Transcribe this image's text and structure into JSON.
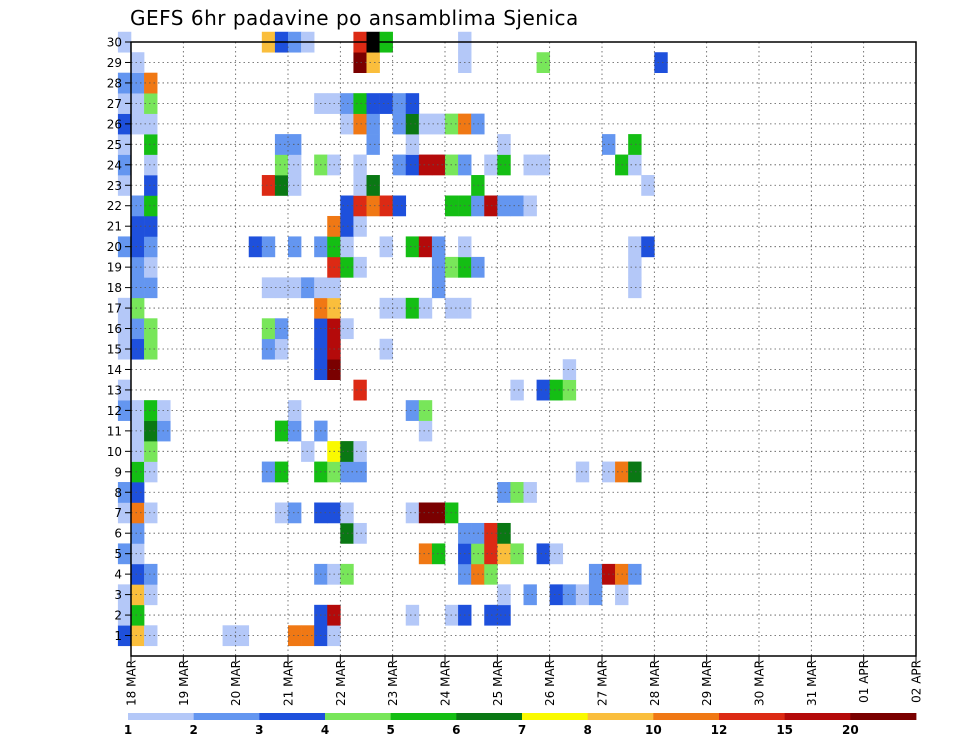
{
  "chart_data": {
    "type": "heatmap",
    "title": "GEFS 6hr padavine po ansamblima Sjenica",
    "xlabel": "",
    "ylabel": "",
    "x_labels": [
      "18 MAR",
      "19 MAR",
      "20 MAR",
      "21 MAR",
      "22 MAR",
      "23 MAR",
      "24 MAR",
      "25 MAR",
      "26 MAR",
      "27 MAR",
      "28 MAR",
      "29 MAR",
      "30 MAR",
      "31 MAR",
      "01 APR",
      "02 APR"
    ],
    "y_labels": [
      "1",
      "2",
      "3",
      "4",
      "5",
      "6",
      "7",
      "8",
      "9",
      "10",
      "11",
      "12",
      "13",
      "14",
      "15",
      "16",
      "17",
      "18",
      "19",
      "20",
      "21",
      "22",
      "23",
      "24",
      "25",
      "26",
      "27",
      "28",
      "29",
      "30"
    ],
    "ylim": [
      0,
      30
    ],
    "grid": true,
    "legend": {
      "position": "bottom",
      "thresholds": [
        "1",
        "2",
        "3",
        "4",
        "5",
        "6",
        "7",
        "8",
        "10",
        "12",
        "15",
        "20"
      ],
      "colors": [
        "#b4c8f8",
        "#6496f0",
        "#1e50dc",
        "#78e65a",
        "#14be14",
        "#0a7814",
        "#fafa00",
        "#fabe3c",
        "#f07814",
        "#dc2a14",
        "#b40a0a",
        "#7a0000"
      ]
    },
    "cells": [
      [
        1,
        1,
        3
      ],
      [
        1,
        2,
        8
      ],
      [
        1,
        3,
        1
      ],
      [
        1,
        9,
        1
      ],
      [
        1,
        10,
        1
      ],
      [
        1,
        14,
        9
      ],
      [
        1,
        15,
        9
      ],
      [
        1,
        16,
        3
      ],
      [
        1,
        17,
        1
      ],
      [
        2,
        1,
        1
      ],
      [
        2,
        2,
        5
      ],
      [
        2,
        16,
        3
      ],
      [
        2,
        17,
        11
      ],
      [
        2,
        23,
        1
      ],
      [
        2,
        26,
        1
      ],
      [
        2,
        27,
        3
      ],
      [
        2,
        29,
        3
      ],
      [
        2,
        30,
        3
      ],
      [
        3,
        1,
        1
      ],
      [
        3,
        2,
        8
      ],
      [
        3,
        3,
        1
      ],
      [
        3,
        30,
        1
      ],
      [
        3,
        32,
        2
      ],
      [
        3,
        34,
        3
      ],
      [
        3,
        35,
        2
      ],
      [
        3,
        36,
        1
      ],
      [
        3,
        37,
        2
      ],
      [
        3,
        39,
        1
      ],
      [
        4,
        2,
        3
      ],
      [
        4,
        3,
        2
      ],
      [
        4,
        16,
        2
      ],
      [
        4,
        17,
        1
      ],
      [
        4,
        18,
        4
      ],
      [
        4,
        27,
        2
      ],
      [
        4,
        28,
        9
      ],
      [
        4,
        29,
        4
      ],
      [
        4,
        37,
        2
      ],
      [
        4,
        38,
        11
      ],
      [
        4,
        39,
        9
      ],
      [
        4,
        40,
        2
      ],
      [
        5,
        1,
        2
      ],
      [
        5,
        2,
        1
      ],
      [
        5,
        24,
        9
      ],
      [
        5,
        25,
        5
      ],
      [
        5,
        27,
        3
      ],
      [
        5,
        28,
        4
      ],
      [
        5,
        29,
        10
      ],
      [
        5,
        30,
        8
      ],
      [
        5,
        31,
        4
      ],
      [
        5,
        33,
        3
      ],
      [
        5,
        34,
        1
      ],
      [
        6,
        2,
        2
      ],
      [
        6,
        18,
        6
      ],
      [
        6,
        19,
        1
      ],
      [
        6,
        27,
        2
      ],
      [
        6,
        28,
        2
      ],
      [
        6,
        29,
        10
      ],
      [
        6,
        30,
        6
      ],
      [
        7,
        1,
        1
      ],
      [
        7,
        2,
        9
      ],
      [
        7,
        3,
        1
      ],
      [
        7,
        13,
        1
      ],
      [
        7,
        14,
        2
      ],
      [
        7,
        16,
        3
      ],
      [
        7,
        17,
        3
      ],
      [
        7,
        18,
        1
      ],
      [
        7,
        23,
        1
      ],
      [
        7,
        24,
        12
      ],
      [
        7,
        25,
        12
      ],
      [
        7,
        26,
        5
      ],
      [
        8,
        1,
        2
      ],
      [
        8,
        2,
        3
      ],
      [
        8,
        30,
        2
      ],
      [
        8,
        31,
        4
      ],
      [
        8,
        32,
        1
      ],
      [
        9,
        2,
        5
      ],
      [
        9,
        3,
        1
      ],
      [
        9,
        12,
        2
      ],
      [
        9,
        13,
        5
      ],
      [
        9,
        16,
        5
      ],
      [
        9,
        17,
        4
      ],
      [
        9,
        18,
        2
      ],
      [
        9,
        19,
        2
      ],
      [
        9,
        36,
        1
      ],
      [
        9,
        38,
        1
      ],
      [
        9,
        39,
        9
      ],
      [
        9,
        40,
        6
      ],
      [
        10,
        2,
        1
      ],
      [
        10,
        3,
        4
      ],
      [
        10,
        15,
        1
      ],
      [
        10,
        17,
        7
      ],
      [
        10,
        18,
        6
      ],
      [
        10,
        19,
        1
      ],
      [
        11,
        2,
        1
      ],
      [
        11,
        3,
        6
      ],
      [
        11,
        4,
        2
      ],
      [
        11,
        13,
        5
      ],
      [
        11,
        14,
        2
      ],
      [
        11,
        16,
        2
      ],
      [
        11,
        24,
        1
      ],
      [
        12,
        1,
        2
      ],
      [
        12,
        2,
        1
      ],
      [
        12,
        3,
        5
      ],
      [
        12,
        4,
        1
      ],
      [
        12,
        14,
        1
      ],
      [
        12,
        23,
        2
      ],
      [
        12,
        24,
        4
      ],
      [
        13,
        1,
        1
      ],
      [
        13,
        19,
        10
      ],
      [
        13,
        31,
        1
      ],
      [
        13,
        33,
        3
      ],
      [
        13,
        34,
        5
      ],
      [
        13,
        35,
        4
      ],
      [
        14,
        16,
        3
      ],
      [
        14,
        17,
        12
      ],
      [
        14,
        35,
        1
      ],
      [
        15,
        1,
        1
      ],
      [
        15,
        2,
        3
      ],
      [
        15,
        3,
        4
      ],
      [
        15,
        12,
        2
      ],
      [
        15,
        13,
        1
      ],
      [
        15,
        16,
        3
      ],
      [
        15,
        17,
        11
      ],
      [
        15,
        21,
        1
      ],
      [
        16,
        1,
        1
      ],
      [
        16,
        2,
        2
      ],
      [
        16,
        3,
        4
      ],
      [
        16,
        12,
        4
      ],
      [
        16,
        13,
        2
      ],
      [
        16,
        16,
        3
      ],
      [
        16,
        17,
        11
      ],
      [
        16,
        18,
        1
      ],
      [
        17,
        1,
        1
      ],
      [
        17,
        2,
        4
      ],
      [
        17,
        16,
        9
      ],
      [
        17,
        17,
        8
      ],
      [
        17,
        21,
        1
      ],
      [
        17,
        22,
        1
      ],
      [
        17,
        23,
        5
      ],
      [
        17,
        24,
        1
      ],
      [
        17,
        26,
        1
      ],
      [
        17,
        27,
        1
      ],
      [
        18,
        2,
        2
      ],
      [
        18,
        3,
        2
      ],
      [
        18,
        12,
        1
      ],
      [
        18,
        13,
        1
      ],
      [
        18,
        14,
        1
      ],
      [
        18,
        15,
        2
      ],
      [
        18,
        16,
        1
      ],
      [
        18,
        17,
        1
      ],
      [
        18,
        25,
        2
      ],
      [
        18,
        40,
        1
      ],
      [
        19,
        2,
        2
      ],
      [
        19,
        3,
        1
      ],
      [
        19,
        17,
        10
      ],
      [
        19,
        18,
        5
      ],
      [
        19,
        19,
        1
      ],
      [
        19,
        25,
        2
      ],
      [
        19,
        26,
        4
      ],
      [
        19,
        27,
        5
      ],
      [
        19,
        28,
        2
      ],
      [
        19,
        40,
        1
      ],
      [
        20,
        1,
        2
      ],
      [
        20,
        2,
        3
      ],
      [
        20,
        3,
        2
      ],
      [
        20,
        11,
        3
      ],
      [
        20,
        12,
        2
      ],
      [
        20,
        14,
        2
      ],
      [
        20,
        16,
        2
      ],
      [
        20,
        17,
        5
      ],
      [
        20,
        18,
        1
      ],
      [
        20,
        21,
        1
      ],
      [
        20,
        23,
        5
      ],
      [
        20,
        24,
        11
      ],
      [
        20,
        25,
        2
      ],
      [
        20,
        27,
        1
      ],
      [
        20,
        40,
        1
      ],
      [
        20,
        41,
        3
      ],
      [
        21,
        2,
        3
      ],
      [
        21,
        3,
        3
      ],
      [
        21,
        17,
        9
      ],
      [
        21,
        18,
        3
      ],
      [
        21,
        19,
        1
      ],
      [
        22,
        2,
        2
      ],
      [
        22,
        3,
        5
      ],
      [
        22,
        18,
        3
      ],
      [
        22,
        19,
        10
      ],
      [
        22,
        20,
        9
      ],
      [
        22,
        21,
        10
      ],
      [
        22,
        22,
        3
      ],
      [
        22,
        26,
        5
      ],
      [
        22,
        27,
        5
      ],
      [
        22,
        28,
        2
      ],
      [
        22,
        29,
        11
      ],
      [
        22,
        30,
        2
      ],
      [
        22,
        31,
        2
      ],
      [
        22,
        32,
        1
      ],
      [
        23,
        1,
        1
      ],
      [
        23,
        3,
        3
      ],
      [
        23,
        12,
        10
      ],
      [
        23,
        13,
        6
      ],
      [
        23,
        14,
        1
      ],
      [
        23,
        19,
        1
      ],
      [
        23,
        20,
        6
      ],
      [
        23,
        28,
        5
      ],
      [
        23,
        41,
        1
      ],
      [
        24,
        1,
        2
      ],
      [
        24,
        3,
        1
      ],
      [
        24,
        13,
        4
      ],
      [
        24,
        14,
        1
      ],
      [
        24,
        16,
        4
      ],
      [
        24,
        17,
        1
      ],
      [
        24,
        19,
        1
      ],
      [
        24,
        22,
        2
      ],
      [
        24,
        23,
        3
      ],
      [
        24,
        24,
        11
      ],
      [
        24,
        25,
        11
      ],
      [
        24,
        26,
        4
      ],
      [
        24,
        27,
        2
      ],
      [
        24,
        29,
        1
      ],
      [
        24,
        30,
        5
      ],
      [
        24,
        32,
        1
      ],
      [
        24,
        33,
        1
      ],
      [
        24,
        39,
        5
      ],
      [
        24,
        40,
        1
      ],
      [
        25,
        1,
        1
      ],
      [
        25,
        3,
        5
      ],
      [
        25,
        13,
        2
      ],
      [
        25,
        14,
        2
      ],
      [
        25,
        20,
        2
      ],
      [
        25,
        23,
        1
      ],
      [
        25,
        30,
        1
      ],
      [
        25,
        38,
        2
      ],
      [
        25,
        40,
        5
      ],
      [
        26,
        1,
        3
      ],
      [
        26,
        2,
        1
      ],
      [
        26,
        3,
        1
      ],
      [
        26,
        18,
        1
      ],
      [
        26,
        19,
        9
      ],
      [
        26,
        20,
        2
      ],
      [
        26,
        22,
        2
      ],
      [
        26,
        23,
        6
      ],
      [
        26,
        24,
        1
      ],
      [
        26,
        25,
        1
      ],
      [
        26,
        26,
        4
      ],
      [
        26,
        27,
        9
      ],
      [
        26,
        28,
        2
      ],
      [
        27,
        1,
        1
      ],
      [
        27,
        2,
        1
      ],
      [
        27,
        3,
        4
      ],
      [
        27,
        16,
        1
      ],
      [
        27,
        17,
        1
      ],
      [
        27,
        18,
        2
      ],
      [
        27,
        19,
        5
      ],
      [
        27,
        20,
        3
      ],
      [
        27,
        21,
        3
      ],
      [
        27,
        22,
        2
      ],
      [
        27,
        23,
        3
      ],
      [
        28,
        1,
        2
      ],
      [
        28,
        2,
        2
      ],
      [
        28,
        3,
        9
      ],
      [
        29,
        2,
        1
      ],
      [
        29,
        19,
        12
      ],
      [
        29,
        20,
        8
      ],
      [
        29,
        27,
        1
      ],
      [
        29,
        33,
        4
      ],
      [
        29,
        42,
        3
      ],
      [
        30,
        1,
        1
      ],
      [
        30,
        12,
        8
      ],
      [
        30,
        13,
        3
      ],
      [
        30,
        14,
        2
      ],
      [
        30,
        15,
        1
      ],
      [
        30,
        19,
        10
      ],
      [
        30,
        20,
        13
      ],
      [
        30,
        21,
        5
      ],
      [
        30,
        27,
        1
      ]
    ]
  }
}
